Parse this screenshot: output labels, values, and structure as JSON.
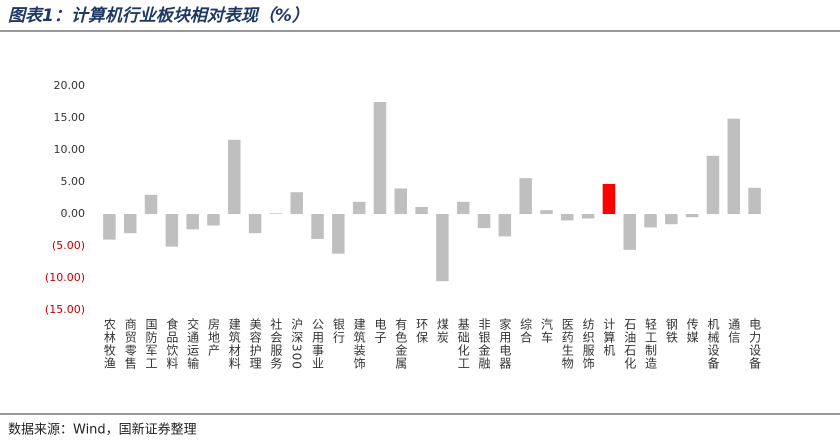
{
  "chart_data": {
    "type": "bar",
    "title": "图表1：计算机行业板块相对表现（%）",
    "source": "数据来源：Wind，国新证券整理",
    "categories": [
      "农林牧渔",
      "商贸零售",
      "国防军工",
      "食品饮料",
      "交通运输",
      "房地产",
      "建筑材料",
      "美容护理",
      "社会服务",
      "沪深300",
      "公用事业",
      "银行",
      "建筑装饰",
      "电子",
      "有色金属",
      "环保",
      "煤炭",
      "基础化工",
      "非银金融",
      "家用电器",
      "综合",
      "汽车",
      "医药生物",
      "纺织服饰",
      "计算机",
      "石油石化",
      "轻工制造",
      "钢铁",
      "传媒",
      "机械设备",
      "通信",
      "电力设备"
    ],
    "values": [
      -4.0,
      -3.0,
      3.0,
      -5.1,
      -2.4,
      -1.8,
      11.6,
      -3.0,
      0.1,
      3.4,
      -3.9,
      -6.2,
      1.9,
      17.5,
      4.0,
      1.1,
      -10.5,
      1.9,
      -2.2,
      -3.5,
      5.6,
      0.6,
      -1.0,
      -0.7,
      4.7,
      -5.6,
      -2.1,
      -1.6,
      -0.5,
      9.1,
      14.9,
      4.1
    ],
    "colors": [
      "#bfbfbf",
      "#bfbfbf",
      "#bfbfbf",
      "#bfbfbf",
      "#bfbfbf",
      "#bfbfbf",
      "#bfbfbf",
      "#bfbfbf",
      "#bfbfbf",
      "#bfbfbf",
      "#bfbfbf",
      "#bfbfbf",
      "#bfbfbf",
      "#bfbfbf",
      "#bfbfbf",
      "#bfbfbf",
      "#bfbfbf",
      "#bfbfbf",
      "#bfbfbf",
      "#bfbfbf",
      "#bfbfbf",
      "#bfbfbf",
      "#bfbfbf",
      "#bfbfbf",
      "#ff0000",
      "#bfbfbf",
      "#bfbfbf",
      "#bfbfbf",
      "#bfbfbf",
      "#bfbfbf",
      "#bfbfbf",
      "#bfbfbf"
    ],
    "ylim": [
      -15,
      20
    ],
    "yticks": [
      {
        "value": 20,
        "label": "20.00"
      },
      {
        "value": 15,
        "label": "15.00"
      },
      {
        "value": 10,
        "label": "10.00"
      },
      {
        "value": 5,
        "label": "5.00"
      },
      {
        "value": 0,
        "label": "0.00"
      },
      {
        "value": -5,
        "label": "(5.00)"
      },
      {
        "value": -10,
        "label": "(10.00)"
      },
      {
        "value": -15,
        "label": "(15.00)"
      }
    ],
    "negative_tick_color": "#c00000",
    "grid": false
  }
}
